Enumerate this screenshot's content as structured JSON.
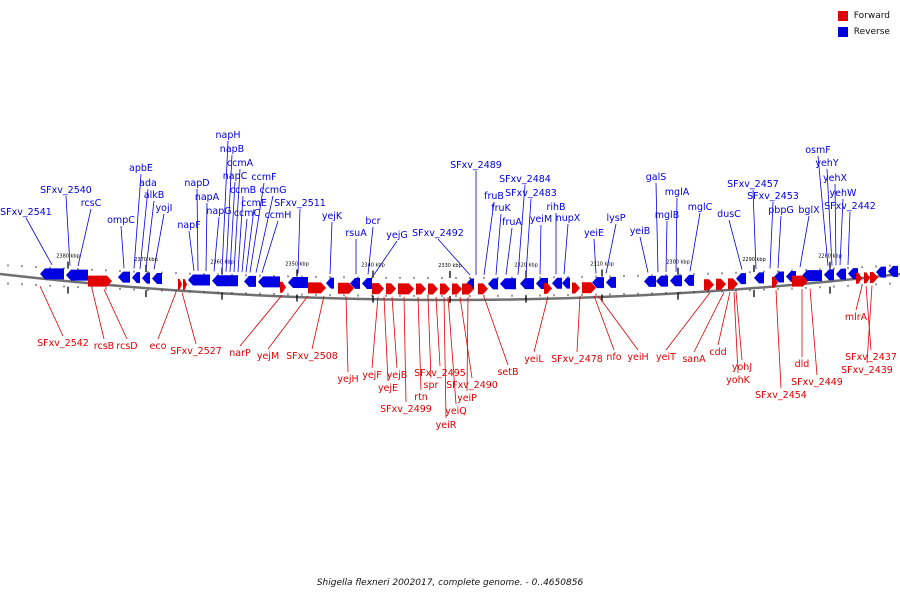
{
  "legend": [
    {
      "label": "Forward",
      "color": "#e00000"
    },
    {
      "label": "Reverse",
      "color": "#0000e0"
    }
  ],
  "caption": "Shigella flexneri 2002017, complete genome. - 0..4650856",
  "colors": {
    "forward": "#e00000",
    "reverse": "#0000e0",
    "backbone": "#707070"
  },
  "ticks": [
    "2380 kbp",
    "2370 kbp",
    "2360 kbp",
    "2350 kbp",
    "2340 kbp",
    "2330 kbp",
    "2320 kbp",
    "2310 kbp",
    "2300 kbp",
    "2290 kbp",
    "2280 kbp"
  ],
  "reverse_genes": [
    "SFxv_2541",
    "SFxv_2540",
    "rcsC",
    "ompC",
    "apbE",
    "ada",
    "alkB",
    "yojI",
    "napF",
    "napD",
    "napA",
    "napG",
    "napH",
    "napB",
    "napC",
    "ccmA",
    "ccmB",
    "ccmC",
    "ccmE",
    "ccmF",
    "ccmG",
    "ccmH",
    "SFxv_2511",
    "yejK",
    "rsuA",
    "bcr",
    "yejG",
    "SFxv_2492",
    "SFxv_2489",
    "fruB",
    "fruK",
    "fruA",
    "SFxv_2484",
    "SFxv_2483",
    "yeiM",
    "rihB",
    "nupX",
    "yeiE",
    "lysP",
    "yeiB",
    "galS",
    "mglB",
    "mglA",
    "mglC",
    "dusC",
    "SFxv_2457",
    "SFxv_2453",
    "pbpG",
    "bglX",
    "osmF",
    "yehY",
    "yehX",
    "yehW",
    "SFxv_2442"
  ],
  "forward_genes": [
    "SFxv_2542",
    "rcsB",
    "rcsD",
    "eco",
    "SFxv_2527",
    "narP",
    "yejM",
    "SFxv_2508",
    "yejH",
    "yejF",
    "yejE",
    "yejB",
    "SFxv_2499",
    "rtn",
    "spr",
    "SFxv_2495",
    "yeiQ",
    "yeiR",
    "SFxv_2490",
    "yeiP",
    "setB",
    "yeiL",
    "SFxv_2478",
    "nfo",
    "yeiH",
    "yeiT",
    "sanA",
    "cdd",
    "yohJ",
    "yohK",
    "SFxv_2454",
    "dld",
    "SFxv_2449",
    "mlrA",
    "SFxv_2437",
    "SFxv_2439"
  ]
}
